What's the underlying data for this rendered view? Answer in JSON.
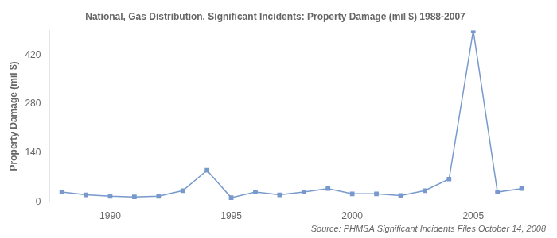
{
  "chart_data": {
    "type": "line",
    "title": "National, Gas Distribution, Significant Incidents: Property Damage (mil $) 1988-2007",
    "ylabel": "Property Damage (mil $)",
    "annotation": "Source: PHMSA Significant Incidents Files October 14, 2008",
    "x": [
      1988,
      1989,
      1990,
      1991,
      1992,
      1993,
      1994,
      1995,
      1996,
      1997,
      1998,
      1999,
      2000,
      2001,
      2002,
      2003,
      2004,
      2005,
      2006,
      2007
    ],
    "values": [
      28,
      20,
      16,
      14,
      16,
      32,
      90,
      12,
      28,
      20,
      28,
      38,
      23,
      23,
      18,
      32,
      65,
      490,
      28,
      38
    ],
    "color": "#7799cc",
    "marker": "square",
    "xlim": [
      1987.5,
      2008.0
    ],
    "xticks": [
      1990,
      1995,
      2000,
      2005
    ],
    "ylim": [
      0,
      490
    ],
    "yticks": [
      0,
      140,
      280,
      420
    ],
    "grid": false,
    "legend": false
  }
}
